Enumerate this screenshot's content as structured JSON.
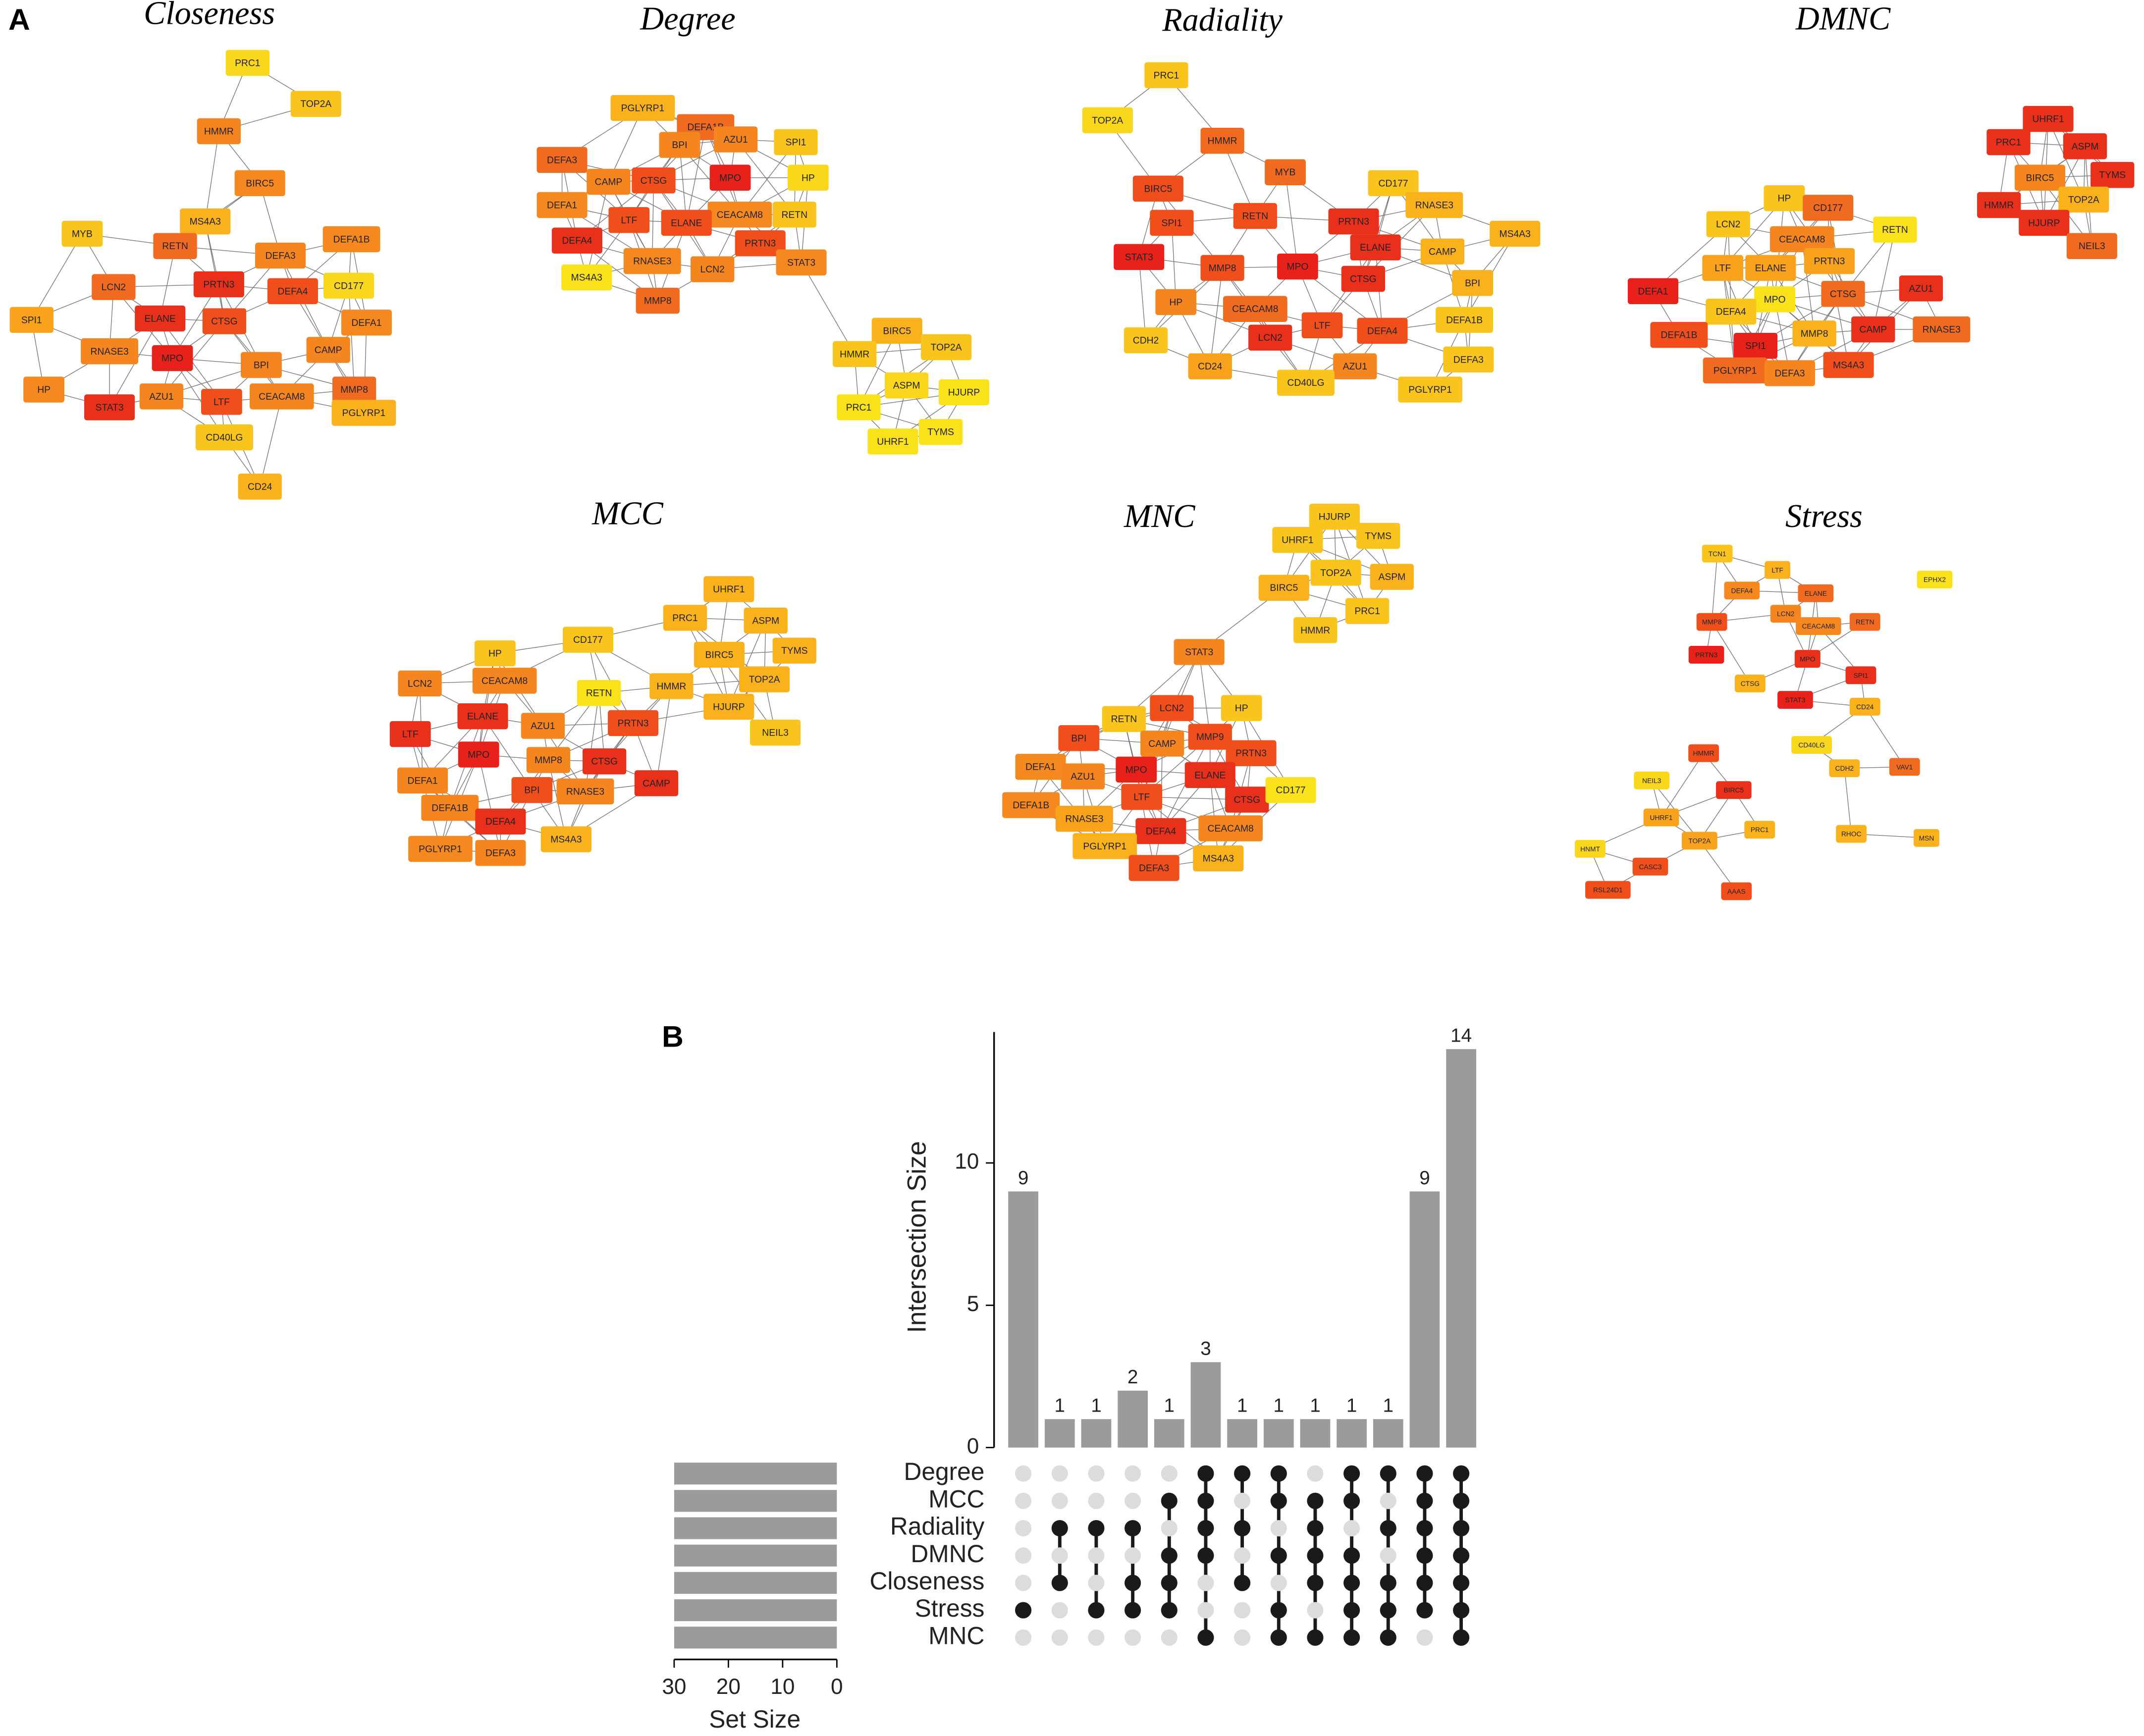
{
  "panel_labels": [
    "A",
    "B"
  ],
  "networks": [
    {
      "title": "Closeness",
      "nodes": [
        "PRC1",
        "TOP2A",
        "HMMR",
        "BIRC5",
        "MS4A3",
        "MYB",
        "RETN",
        "DEFA1B",
        "DEFA3",
        "CD177",
        "LCN2",
        "PRTN3",
        "DEFA4",
        "ELANE",
        "CTSG",
        "DEFA1",
        "SPI1",
        "RNASE3",
        "CAMP",
        "MPO",
        "BPI",
        "MMP8",
        "HP",
        "AZU1",
        "CEACAM8",
        "STAT3",
        "LTF",
        "PGLYRP1",
        "CD40LG",
        "CD24"
      ],
      "colors": [
        "#f9d71c",
        "#f9c41c",
        "#f5861f",
        "#f5891f",
        "#f9b21c",
        "#f9c41c",
        "#f06b1f",
        "#f5891f",
        "#f5861f",
        "#f9d71c",
        "#f06b1f",
        "#e8301a",
        "#f04f1c",
        "#e8301a",
        "#f04f1c",
        "#f5891f",
        "#f9a21c",
        "#f5861f",
        "#f5861f",
        "#e8221a",
        "#f5861f",
        "#f06b1f",
        "#f5891f",
        "#f5861f",
        "#f5861f",
        "#e8301a",
        "#f04f1c",
        "#f9b21c",
        "#f9c41c",
        "#f9b21c"
      ]
    },
    {
      "title": "Degree",
      "nodes": [
        "PGLYRP1",
        "DEFA1B",
        "AZU1",
        "SPI1",
        "BPI",
        "HP",
        "DEFA3",
        "CAMP",
        "CTSG",
        "MPO",
        "CEACAM8",
        "RETN",
        "DEFA1",
        "LTF",
        "ELANE",
        "PRTN3",
        "STAT3",
        "DEFA4",
        "RNASE3",
        "LCN2",
        "MS4A3",
        "MMP8",
        "BIRC5",
        "HMMR",
        "TOP2A",
        "ASPM",
        "HJURP",
        "PRC1",
        "TYMS",
        "UHRF1"
      ],
      "colors": [
        "#f9b21c",
        "#f06b1f",
        "#f5861f",
        "#f9c41c",
        "#f5861f",
        "#f9d71c",
        "#f06b1f",
        "#f5861f",
        "#f04f1c",
        "#e8221a",
        "#f5891f",
        "#f9c41c",
        "#f5891f",
        "#f04f1c",
        "#f04f1c",
        "#f04f1c",
        "#f5891f",
        "#e8301a",
        "#f5891f",
        "#f5861f",
        "#f9e21a",
        "#f06b1f",
        "#f9b21c",
        "#f9c41c",
        "#f9c41c",
        "#f9d71c",
        "#f9e21a",
        "#f9e21a",
        "#f9e21a",
        "#f9e21a"
      ]
    },
    {
      "title": "Radiality",
      "nodes": [
        "PRC1",
        "TOP2A",
        "HMMR",
        "MYB",
        "BIRC5",
        "CD177",
        "SPI1",
        "RETN",
        "PRTN3",
        "RNASE3",
        "MS4A3",
        "STAT3",
        "ELANE",
        "CAMP",
        "MMP8",
        "MPO",
        "HP",
        "CEACAM8",
        "CTSG",
        "BPI",
        "CDH2",
        "LCN2",
        "LTF",
        "DEFA4",
        "DEFA1B",
        "CD24",
        "AZU1",
        "DEFA3",
        "CD40LG",
        "PGLYRP1"
      ],
      "colors": [
        "#f9c41c",
        "#f9d71c",
        "#f06b1f",
        "#f06b1f",
        "#f04f1c",
        "#f9c41c",
        "#f04f1c",
        "#f04f1c",
        "#e8301a",
        "#f9b21c",
        "#f9b21c",
        "#e8221a",
        "#e8301a",
        "#f9b21c",
        "#f04f1c",
        "#e8221a",
        "#f5861f",
        "#f06b1f",
        "#e8301a",
        "#f9b21c",
        "#f9c41c",
        "#e8301a",
        "#f04f1c",
        "#f04f1c",
        "#f9c41c",
        "#f9a21c",
        "#f5861f",
        "#f9c41c",
        "#f9c41c",
        "#f9c41c"
      ]
    },
    {
      "title": "DMNC",
      "nodes": [
        "UHRF1",
        "PRC1",
        "ASPM",
        "TYMS",
        "BIRC5",
        "HP",
        "CD177",
        "TOP2A",
        "HMMR",
        "HJURP",
        "LCN2",
        "CEACAM8",
        "RETN",
        "NEIL3",
        "LTF",
        "ELANE",
        "PRTN3",
        "DEFA1",
        "MPO",
        "CTSG",
        "AZU1",
        "DEFA4",
        "DEFA1B",
        "SPI1",
        "MMP8",
        "CAMP",
        "RNASE3",
        "PGLYRP1",
        "DEFA3",
        "MS4A3"
      ],
      "colors": [
        "#e8301a",
        "#e8301a",
        "#e8301a",
        "#e8301a",
        "#f5861f",
        "#f9c41c",
        "#f06b1f",
        "#f9b21c",
        "#e8301a",
        "#e8301a",
        "#f9c41c",
        "#f5861f",
        "#f9e21a",
        "#f06b1f",
        "#f9a21c",
        "#f9a21c",
        "#f9a21c",
        "#e8221a",
        "#f9e21a",
        "#f06b1f",
        "#e8301a",
        "#f9c41c",
        "#f04f1c",
        "#e8221a",
        "#f9b21c",
        "#e8301a",
        "#f06b1f",
        "#f06b1f",
        "#f5861f",
        "#f04f1c"
      ]
    },
    {
      "title": "MCC",
      "nodes": [
        "UHRF1",
        "PRC1",
        "ASPM",
        "BIRC5",
        "TYMS",
        "HP",
        "CD177",
        "HMMR",
        "TOP2A",
        "CEACAM8",
        "LCN2",
        "RETN",
        "HJURP",
        "ELANE",
        "AZU1",
        "PRTN3",
        "NEIL3",
        "LTF",
        "MPO",
        "MMP8",
        "CTSG",
        "DEFA1",
        "BPI",
        "RNASE3",
        "CAMP",
        "DEFA1B",
        "DEFA4",
        "MS4A3",
        "PGLYRP1",
        "DEFA3"
      ],
      "colors": [
        "#f9b21c",
        "#f9b21c",
        "#f9b21c",
        "#f9b21c",
        "#f9b21c",
        "#f9c41c",
        "#f9c41c",
        "#f9b21c",
        "#f9b21c",
        "#f5861f",
        "#f5861f",
        "#f9e21a",
        "#f9b21c",
        "#e8301a",
        "#f5861f",
        "#f04f1c",
        "#f9c41c",
        "#e8301a",
        "#e8221a",
        "#f5861f",
        "#e8301a",
        "#f5861f",
        "#f04f1c",
        "#f5861f",
        "#e8301a",
        "#f5861f",
        "#e8301a",
        "#f9b21c",
        "#f5891f",
        "#f5861f"
      ]
    },
    {
      "title": "MNC",
      "nodes": [
        "HJURP",
        "UHRF1",
        "TYMS",
        "BIRC5",
        "TOP2A",
        "ASPM",
        "PRC1",
        "HMMR",
        "STAT3",
        "RETN",
        "LCN2",
        "HP",
        "BPI",
        "CAMP",
        "MMP9",
        "PRTN3",
        "DEFA1",
        "MPO",
        "ELANE",
        "AZU1",
        "LTF",
        "CTSG",
        "CD177",
        "DEFA1B",
        "RNASE3",
        "DEFA4",
        "CEACAM8",
        "PGLYRP1",
        "DEFA3",
        "MS4A3"
      ],
      "colors": [
        "#f9c41c",
        "#f9c41c",
        "#f9c41c",
        "#f9b21c",
        "#f9c41c",
        "#f9b21c",
        "#f9c41c",
        "#f9c41c",
        "#f5861f",
        "#f9c41c",
        "#f04f1c",
        "#f9c41c",
        "#f04f1c",
        "#f5861f",
        "#f04f1c",
        "#f04f1c",
        "#f5891f",
        "#e8221a",
        "#e8301a",
        "#f5861f",
        "#f04f1c",
        "#e8301a",
        "#f9e21a",
        "#f5891f",
        "#f9a21c",
        "#e8301a",
        "#f5861f",
        "#f9b21c",
        "#f04f1c",
        "#f9b21c"
      ]
    },
    {
      "title": "Stress",
      "nodes": [
        "TCN1",
        "LTF",
        "EPHX2",
        "DEFA4",
        "ELANE",
        "LCN2",
        "MMP8",
        "CEACAM8",
        "RETN",
        "PRTN3",
        "MPO",
        "CTSG",
        "SPI1",
        "STAT3",
        "CD24",
        "CD40LG",
        "HMMR",
        "BIRC5",
        "CDH2",
        "VAV1",
        "NEIL3",
        "UHRF1",
        "TOP2A",
        "PRC1",
        "RHOC",
        "MSN",
        "HNMT",
        "CASC3",
        "RSL24D1",
        "AAAS"
      ],
      "colors": [
        "#f9c41c",
        "#f9b21c",
        "#f9e21a",
        "#f5891f",
        "#f06b1f",
        "#f5861f",
        "#f04f1c",
        "#f5891f",
        "#f06b1f",
        "#e8221a",
        "#e8301a",
        "#f9b21c",
        "#e8301a",
        "#e8221a",
        "#f9b21c",
        "#f9d71c",
        "#f04f1c",
        "#e8301a",
        "#f9b21c",
        "#f06b1f",
        "#f9d71c",
        "#f9a21c",
        "#f9a21c",
        "#f9b21c",
        "#f9b21c",
        "#f9b21c",
        "#f9d71c",
        "#f04f1c",
        "#f04f1c",
        "#f04f1c"
      ]
    }
  ],
  "chart_data": {
    "type": "upset",
    "ylabel": "Intersection Size",
    "xlabel": "Set Size",
    "sets": [
      "Degree",
      "MCC",
      "Radiality",
      "DMNC",
      "Closeness",
      "Stress",
      "MNC"
    ],
    "set_sizes": [
      30,
      30,
      30,
      30,
      30,
      30,
      30
    ],
    "values": [
      9,
      1,
      1,
      2,
      1,
      3,
      1,
      1,
      1,
      1,
      1,
      9,
      14
    ],
    "membership": [
      [
        0,
        0,
        0,
        0,
        0,
        1,
        0
      ],
      [
        0,
        0,
        1,
        0,
        1,
        0,
        0
      ],
      [
        0,
        0,
        1,
        0,
        0,
        1,
        0
      ],
      [
        0,
        0,
        1,
        0,
        1,
        1,
        0
      ],
      [
        0,
        1,
        0,
        1,
        1,
        1,
        0
      ],
      [
        1,
        1,
        1,
        1,
        0,
        0,
        1
      ],
      [
        1,
        0,
        1,
        0,
        1,
        0,
        0
      ],
      [
        1,
        1,
        0,
        1,
        0,
        1,
        1
      ],
      [
        0,
        1,
        1,
        1,
        1,
        0,
        1
      ],
      [
        1,
        1,
        0,
        1,
        1,
        1,
        1
      ],
      [
        1,
        0,
        1,
        0,
        1,
        1,
        1
      ],
      [
        1,
        1,
        1,
        1,
        1,
        1,
        0
      ],
      [
        1,
        1,
        1,
        1,
        1,
        1,
        1
      ]
    ],
    "color": "#9b9b9b",
    "dot_color": "#1a1a1a",
    "empty_dot_color": "#dcdcdc",
    "ylim": [
      0,
      14.6
    ],
    "yticks": [
      0,
      5,
      10
    ],
    "xlim": [
      0,
      30
    ],
    "xticks": [
      30,
      20,
      10,
      0
    ]
  }
}
